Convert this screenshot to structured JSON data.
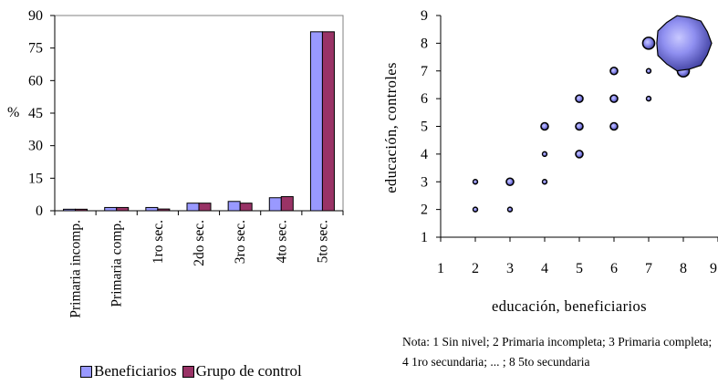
{
  "chart_data": [
    {
      "type": "bar",
      "title": "",
      "xlabel": "",
      "ylabel": "%",
      "ylim": [
        0,
        90
      ],
      "yticks": [
        0,
        15,
        30,
        45,
        60,
        75,
        90
      ],
      "categories": [
        "Primaria incomp.",
        "Primaria comp.",
        "1ro sec.",
        "2do sec.",
        "3ro sec.",
        "4to sec.",
        "5to sec."
      ],
      "series": [
        {
          "name": "Beneficiarios",
          "color": "#9999ff",
          "values": [
            0.7,
            1.5,
            1.5,
            3.5,
            4.3,
            6.0,
            82.5
          ]
        },
        {
          "name": "Grupo de control",
          "color": "#993366",
          "values": [
            0.7,
            1.5,
            0.8,
            3.5,
            3.5,
            6.5,
            82.5
          ]
        }
      ],
      "grid": false,
      "legend": "bottom"
    },
    {
      "type": "scatter",
      "title": "",
      "xlabel": "educación, beneficiarios",
      "ylabel": "educación, controles",
      "xlim": [
        1,
        9
      ],
      "ylim": [
        1,
        9
      ],
      "xticks": [
        1,
        2,
        3,
        4,
        5,
        6,
        7,
        8,
        9
      ],
      "yticks": [
        1,
        2,
        3,
        4,
        5,
        6,
        7,
        8,
        9
      ],
      "bubble_style": "bubble chart, size proportional to frequency",
      "points": [
        {
          "x": 2,
          "y": 2,
          "size": 1
        },
        {
          "x": 2,
          "y": 3,
          "size": 1
        },
        {
          "x": 3,
          "y": 2,
          "size": 1
        },
        {
          "x": 3,
          "y": 3,
          "size": 2
        },
        {
          "x": 4,
          "y": 3,
          "size": 1
        },
        {
          "x": 4,
          "y": 4,
          "size": 1
        },
        {
          "x": 4,
          "y": 5,
          "size": 2
        },
        {
          "x": 5,
          "y": 4,
          "size": 2
        },
        {
          "x": 5,
          "y": 5,
          "size": 2
        },
        {
          "x": 5,
          "y": 6,
          "size": 2
        },
        {
          "x": 6,
          "y": 5,
          "size": 2
        },
        {
          "x": 6,
          "y": 6,
          "size": 2
        },
        {
          "x": 6,
          "y": 7,
          "size": 2
        },
        {
          "x": 7,
          "y": 6,
          "size": 1
        },
        {
          "x": 7,
          "y": 7,
          "size": 1
        },
        {
          "x": 7,
          "y": 8,
          "size": 5
        },
        {
          "x": 8,
          "y": 7,
          "size": 5
        },
        {
          "x": 8,
          "y": 8,
          "size": 120
        }
      ],
      "grid": false,
      "legend": "none"
    }
  ],
  "note": "Nota: 1 Sin nivel; 2 Primaria incompleta; 3 Primaria completa; 4 1ro secundaria; ... ; 8 5to secundaria",
  "legend_items": [
    "Beneficiarios",
    "Grupo de control"
  ]
}
